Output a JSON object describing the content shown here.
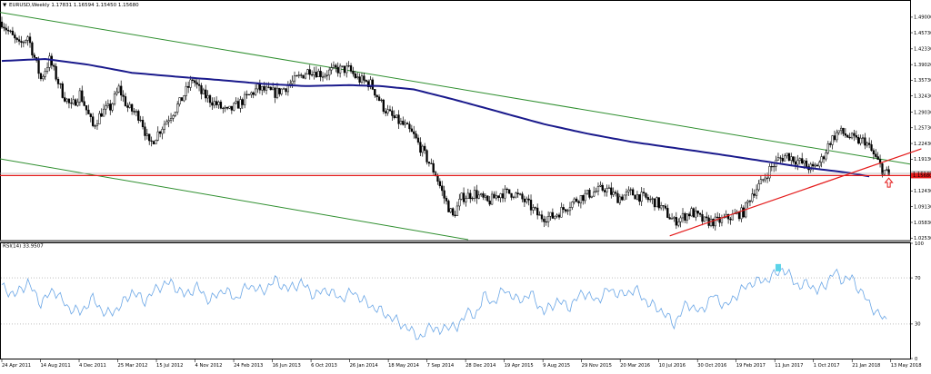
{
  "header": {
    "menu_arrow": "▼",
    "title": "EURUSD,Weekly  1.17831 1.16594 1.15450 1.15680"
  },
  "rsi_header": "RSI(14) 33.9507",
  "colors": {
    "background": "#ffffff",
    "candle": "#000000",
    "moving_average": "#1a1a8c",
    "channel": "#2f8f2f",
    "trendline": "#e41b1b",
    "support_line": "#e41b1b",
    "rsi_line": "#6aa6e6",
    "rsi_marker": "#5bd3e8",
    "current_price_bg": "#e41b1b"
  },
  "chart_data": [
    {
      "type": "candlestick",
      "symbol": "EURUSD",
      "timeframe": "Weekly",
      "ohlc_last": {
        "open": 1.17831,
        "high": 1.16594,
        "low": 1.1545,
        "close": 1.1568
      },
      "y_ticks": [
        "1.49000",
        "1.45730",
        "1.42330",
        "1.39020",
        "1.35730",
        "1.32430",
        "1.29030",
        "1.25730",
        "1.22430",
        "1.19130",
        "1.15830",
        "1.12430",
        "1.09130",
        "1.05830",
        "1.02530"
      ],
      "ylim": [
        1.022,
        1.507
      ],
      "x_ticks": [
        "24 Apr 2011",
        "14 Aug 2011",
        "4 Dec 2011",
        "25 Mar 2012",
        "15 Jul 2012",
        "4 Nov 2012",
        "24 Feb 2013",
        "16 Jun 2013",
        "6 Oct 2013",
        "26 Jan 2014",
        "18 May 2014",
        "7 Sep 2014",
        "28 Dec 2014",
        "19 Apr 2015",
        "9 Aug 2015",
        "29 Nov 2015",
        "20 Mar 2016",
        "10 Jul 2016",
        "30 Oct 2016",
        "19 Feb 2017",
        "11 Jun 2017",
        "1 Oct 2017",
        "21 Jan 2018",
        "13 May 2018"
      ],
      "price_labels": [
        "1.16140",
        "1.15680"
      ],
      "anchors": [
        [
          0,
          1.48
        ],
        [
          3,
          1.46
        ],
        [
          8,
          1.43
        ],
        [
          12,
          1.45
        ],
        [
          18,
          1.36
        ],
        [
          22,
          1.4
        ],
        [
          28,
          1.33
        ],
        [
          32,
          1.3
        ],
        [
          36,
          1.33
        ],
        [
          42,
          1.26
        ],
        [
          46,
          1.29
        ],
        [
          50,
          1.3
        ],
        [
          54,
          1.34
        ],
        [
          58,
          1.3
        ],
        [
          64,
          1.28
        ],
        [
          68,
          1.22
        ],
        [
          74,
          1.26
        ],
        [
          82,
          1.31
        ],
        [
          88,
          1.36
        ],
        [
          92,
          1.33
        ],
        [
          98,
          1.31
        ],
        [
          104,
          1.29
        ],
        [
          110,
          1.31
        ],
        [
          118,
          1.34
        ],
        [
          126,
          1.33
        ],
        [
          130,
          1.34
        ],
        [
          136,
          1.36
        ],
        [
          142,
          1.38
        ],
        [
          148,
          1.37
        ],
        [
          154,
          1.38
        ],
        [
          160,
          1.38
        ],
        [
          164,
          1.36
        ],
        [
          170,
          1.35
        ],
        [
          176,
          1.3
        ],
        [
          180,
          1.28
        ],
        [
          186,
          1.26
        ],
        [
          190,
          1.24
        ],
        [
          195,
          1.2
        ],
        [
          200,
          1.16
        ],
        [
          204,
          1.11
        ],
        [
          208,
          1.07
        ],
        [
          212,
          1.11
        ],
        [
          218,
          1.12
        ],
        [
          224,
          1.1
        ],
        [
          230,
          1.12
        ],
        [
          236,
          1.12
        ],
        [
          242,
          1.1
        ],
        [
          248,
          1.07
        ],
        [
          254,
          1.07
        ],
        [
          260,
          1.09
        ],
        [
          266,
          1.11
        ],
        [
          272,
          1.12
        ],
        [
          278,
          1.13
        ],
        [
          284,
          1.11
        ],
        [
          290,
          1.12
        ],
        [
          296,
          1.11
        ],
        [
          302,
          1.1
        ],
        [
          306,
          1.08
        ],
        [
          310,
          1.06
        ],
        [
          314,
          1.07
        ],
        [
          318,
          1.08
        ],
        [
          324,
          1.06
        ],
        [
          330,
          1.06
        ],
        [
          336,
          1.07
        ],
        [
          342,
          1.08
        ],
        [
          346,
          1.12
        ],
        [
          350,
          1.14
        ],
        [
          354,
          1.17
        ],
        [
          358,
          1.19
        ],
        [
          362,
          1.2
        ],
        [
          366,
          1.19
        ],
        [
          370,
          1.18
        ],
        [
          374,
          1.17
        ],
        [
          378,
          1.19
        ],
        [
          382,
          1.23
        ],
        [
          386,
          1.25
        ],
        [
          390,
          1.24
        ],
        [
          394,
          1.23
        ],
        [
          398,
          1.23
        ],
        [
          402,
          1.2
        ],
        [
          406,
          1.17
        ],
        [
          409,
          1.157
        ]
      ],
      "moving_average": [
        [
          0,
          1.398
        ],
        [
          20,
          1.402
        ],
        [
          40,
          1.39
        ],
        [
          60,
          1.373
        ],
        [
          80,
          1.365
        ],
        [
          100,
          1.358
        ],
        [
          120,
          1.35
        ],
        [
          140,
          1.345
        ],
        [
          160,
          1.347
        ],
        [
          175,
          1.345
        ],
        [
          190,
          1.338
        ],
        [
          210,
          1.315
        ],
        [
          230,
          1.29
        ],
        [
          250,
          1.265
        ],
        [
          270,
          1.245
        ],
        [
          290,
          1.228
        ],
        [
          310,
          1.215
        ],
        [
          330,
          1.202
        ],
        [
          350,
          1.188
        ],
        [
          370,
          1.174
        ],
        [
          390,
          1.163
        ],
        [
          400,
          1.155
        ]
      ]
    },
    {
      "type": "line",
      "name": "RSI(14)",
      "value_last": 33.9507,
      "y_ticks": [
        "100",
        "70",
        "30",
        "0"
      ],
      "ylim": [
        0,
        100
      ],
      "levels": [
        70,
        30
      ],
      "anchors": [
        [
          0,
          62
        ],
        [
          6,
          55
        ],
        [
          12,
          66
        ],
        [
          18,
          48
        ],
        [
          24,
          60
        ],
        [
          30,
          45
        ],
        [
          36,
          40
        ],
        [
          42,
          52
        ],
        [
          48,
          38
        ],
        [
          54,
          44
        ],
        [
          60,
          58
        ],
        [
          66,
          50
        ],
        [
          72,
          62
        ],
        [
          78,
          66
        ],
        [
          84,
          55
        ],
        [
          90,
          62
        ],
        [
          96,
          50
        ],
        [
          102,
          60
        ],
        [
          108,
          52
        ],
        [
          114,
          64
        ],
        [
          120,
          58
        ],
        [
          126,
          68
        ],
        [
          132,
          60
        ],
        [
          138,
          66
        ],
        [
          144,
          55
        ],
        [
          150,
          60
        ],
        [
          156,
          52
        ],
        [
          162,
          58
        ],
        [
          168,
          48
        ],
        [
          174,
          42
        ],
        [
          180,
          35
        ],
        [
          186,
          28
        ],
        [
          190,
          22
        ],
        [
          194,
          18
        ],
        [
          198,
          30
        ],
        [
          202,
          22
        ],
        [
          206,
          30
        ],
        [
          210,
          25
        ],
        [
          214,
          42
        ],
        [
          218,
          35
        ],
        [
          222,
          55
        ],
        [
          226,
          48
        ],
        [
          232,
          60
        ],
        [
          238,
          50
        ],
        [
          244,
          56
        ],
        [
          250,
          40
        ],
        [
          256,
          50
        ],
        [
          262,
          45
        ],
        [
          268,
          58
        ],
        [
          274,
          50
        ],
        [
          280,
          60
        ],
        [
          286,
          55
        ],
        [
          292,
          60
        ],
        [
          298,
          48
        ],
        [
          304,
          42
        ],
        [
          310,
          30
        ],
        [
          316,
          48
        ],
        [
          322,
          40
        ],
        [
          328,
          55
        ],
        [
          334,
          45
        ],
        [
          340,
          58
        ],
        [
          346,
          66
        ],
        [
          352,
          68
        ],
        [
          356,
          72
        ],
        [
          360,
          78
        ],
        [
          364,
          70
        ],
        [
          368,
          62
        ],
        [
          372,
          66
        ],
        [
          376,
          58
        ],
        [
          380,
          65
        ],
        [
          384,
          75
        ],
        [
          388,
          68
        ],
        [
          392,
          70
        ],
        [
          396,
          58
        ],
        [
          400,
          48
        ],
        [
          404,
          38
        ],
        [
          408,
          34
        ]
      ]
    }
  ]
}
